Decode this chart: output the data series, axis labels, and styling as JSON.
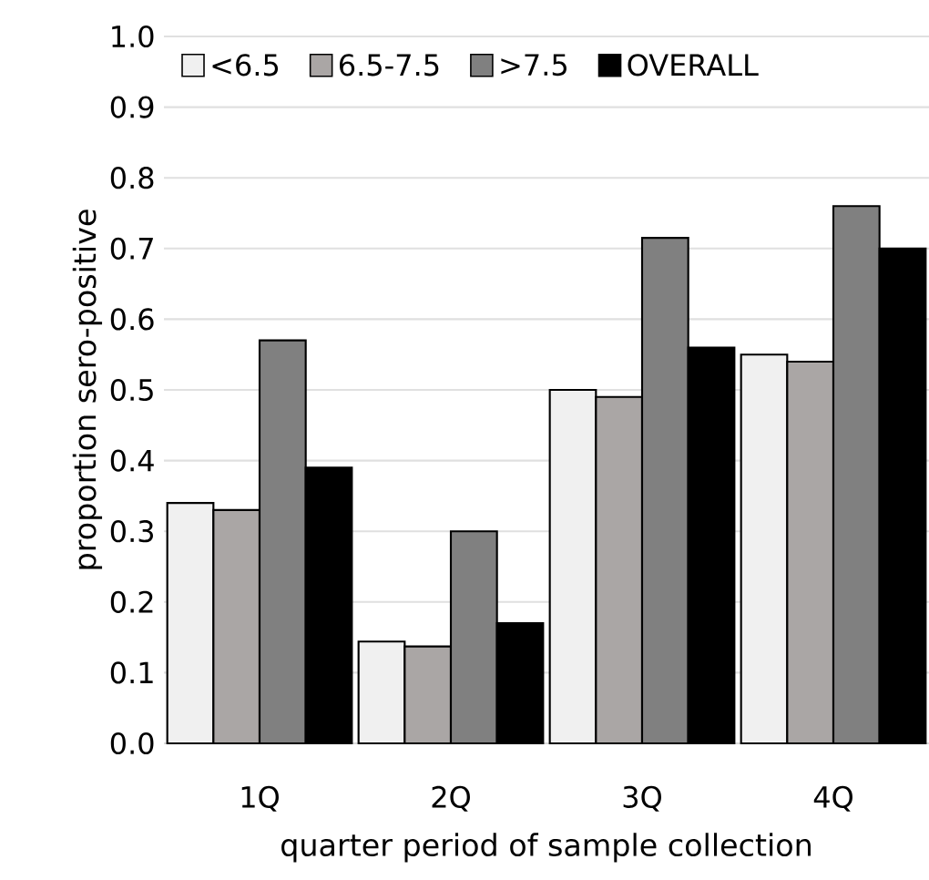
{
  "chart_data": {
    "type": "bar",
    "xlabel": "quarter period of sample collection",
    "ylabel": "proportion sero-positive",
    "categories": [
      "1Q",
      "2Q",
      "3Q",
      "4Q"
    ],
    "series": [
      {
        "name": "<6.5",
        "color": "#f0f0f0",
        "values": [
          0.34,
          0.144,
          0.5,
          0.55
        ]
      },
      {
        "name": "6.5-7.5",
        "color": "#aaa6a5",
        "values": [
          0.33,
          0.137,
          0.49,
          0.54
        ]
      },
      {
        "name": ">7.5",
        "color": "#808080",
        "values": [
          0.57,
          0.3,
          0.715,
          0.76
        ]
      },
      {
        "name": "OVERALL",
        "color": "#000000",
        "values": [
          0.39,
          0.17,
          0.56,
          0.7
        ]
      }
    ],
    "ylim": [
      0,
      1.0
    ],
    "yticks": [
      {
        "value": 0,
        "label": "0.0"
      },
      0.1,
      0.2,
      0.3,
      0.4,
      0.5,
      0.6,
      0.7,
      0.8,
      0.9,
      {
        "value": 1,
        "label": "1.0"
      }
    ],
    "grid": "y",
    "legend": "top left"
  }
}
